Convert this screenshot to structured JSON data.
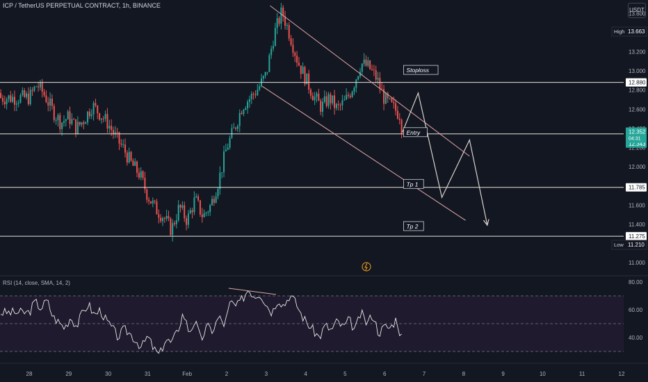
{
  "title": "ICP / TetherUS PERPETUAL CONTRACT, 1h, BINANCE",
  "currency": "USDT",
  "rsi_title": "RSI (14, close, SMA, 14, 2)",
  "colors": {
    "bg": "#131722",
    "up": "#26a69a",
    "down": "#ef5350",
    "level": "#e8e4d8",
    "channel": "#e0a8a8",
    "arrow": "#d9d4cc",
    "rsi": "#e8e8e8",
    "rsi_band": "#1f1a2e",
    "high_box": "#131722",
    "badge_green": "#26a69a"
  },
  "chart_data": [
    {
      "type": "candlestick",
      "x_tick_labels": [
        "28",
        "29",
        "30",
        "31",
        "Feb",
        "2",
        "3",
        "4",
        "5",
        "6",
        "7",
        "8",
        "9",
        "10",
        "11",
        "12"
      ],
      "y_ticks": [
        "13.600",
        "13.400",
        "13.200",
        "13.000",
        "12.800",
        "12.600",
        "12.400",
        "12.200",
        "12.000",
        "11.800",
        "11.600",
        "11.400",
        "11.200",
        "11.000"
      ],
      "ylim": [
        10.87,
        13.74
      ],
      "xlim": [
        -0.75,
        15.1
      ],
      "price_path": [
        [
          0.0,
          12.72
        ],
        [
          0.2,
          12.86
        ],
        [
          0.4,
          12.74
        ],
        [
          0.6,
          12.58
        ],
        [
          0.8,
          12.46
        ],
        [
          1.0,
          12.52
        ],
        [
          1.2,
          12.4
        ],
        [
          1.4,
          12.5
        ],
        [
          1.6,
          12.64
        ],
        [
          1.8,
          12.55
        ],
        [
          2.0,
          12.45
        ],
        [
          2.2,
          12.3
        ],
        [
          2.4,
          12.18
        ],
        [
          2.6,
          12.02
        ],
        [
          2.8,
          11.92
        ],
        [
          3.0,
          11.7
        ],
        [
          3.2,
          11.56
        ],
        [
          3.4,
          11.48
        ],
        [
          3.6,
          11.34
        ],
        [
          3.8,
          11.58
        ],
        [
          4.0,
          11.44
        ],
        [
          4.2,
          11.66
        ],
        [
          4.4,
          11.48
        ],
        [
          4.6,
          11.6
        ],
        [
          4.8,
          11.86
        ],
        [
          5.0,
          12.2
        ],
        [
          5.2,
          12.4
        ],
        [
          5.4,
          12.64
        ],
        [
          5.6,
          12.72
        ],
        [
          5.8,
          12.82
        ],
        [
          6.0,
          12.96
        ],
        [
          6.2,
          13.38
        ],
        [
          6.4,
          13.62
        ],
        [
          6.6,
          13.38
        ],
        [
          6.8,
          13.1
        ],
        [
          7.0,
          12.92
        ],
        [
          7.2,
          12.74
        ],
        [
          7.4,
          12.62
        ],
        [
          7.6,
          12.72
        ],
        [
          7.8,
          12.6
        ],
        [
          8.0,
          12.68
        ],
        [
          8.2,
          12.84
        ],
        [
          8.4,
          13.08
        ],
        [
          8.6,
          13.04
        ],
        [
          8.8,
          12.92
        ],
        [
          9.0,
          12.7
        ],
        [
          9.2,
          12.62
        ],
        [
          9.4,
          12.54
        ],
        [
          9.45,
          12.34
        ]
      ],
      "levels": [
        {
          "price": 12.88,
          "label": "12.880"
        },
        {
          "price": 12.343,
          "label": "12.343"
        },
        {
          "price": 11.785,
          "label": "11.785"
        },
        {
          "price": 11.275,
          "label": "11.275"
        }
      ],
      "current": {
        "price": "12.352",
        "countdown": "04:31"
      },
      "high": {
        "label": "High",
        "value": "13.663"
      },
      "low": {
        "label": "Low",
        "value": "11.210"
      },
      "annotations": [
        {
          "text": "Stoploss",
          "x": 9.55,
          "price": 13.0
        },
        {
          "text": "Entry",
          "x": 9.55,
          "price": 12.35
        },
        {
          "text": "Tp 1",
          "x": 9.55,
          "price": 11.81
        },
        {
          "text": "Tp 2",
          "x": 9.55,
          "price": 11.37
        }
      ],
      "channel_upper": [
        [
          6.1,
          13.68
        ],
        [
          11.15,
          12.11
        ]
      ],
      "channel_lower": [
        [
          5.9,
          12.84
        ],
        [
          11.05,
          11.44
        ]
      ],
      "projection": [
        [
          9.45,
          12.36
        ],
        [
          9.85,
          12.77
        ],
        [
          10.45,
          11.68
        ],
        [
          11.15,
          12.28
        ],
        [
          11.6,
          11.39
        ]
      ]
    },
    {
      "type": "line",
      "name": "RSI",
      "y_ticks": [
        "80.00",
        "60.00",
        "40.00"
      ],
      "ylim": [
        22,
        84
      ],
      "bands": [
        70,
        50,
        30
      ],
      "values": [
        [
          0.0,
          58
        ],
        [
          0.15,
          66
        ],
        [
          0.3,
          61
        ],
        [
          0.45,
          67
        ],
        [
          0.6,
          55
        ],
        [
          0.75,
          51
        ],
        [
          0.9,
          47
        ],
        [
          1.05,
          55
        ],
        [
          1.2,
          48
        ],
        [
          1.35,
          58
        ],
        [
          1.5,
          64
        ],
        [
          1.65,
          56
        ],
        [
          1.8,
          60
        ],
        [
          1.95,
          52
        ],
        [
          2.1,
          47
        ],
        [
          2.25,
          40
        ],
        [
          2.4,
          46
        ],
        [
          2.55,
          43
        ],
        [
          2.7,
          38
        ],
        [
          2.85,
          33
        ],
        [
          3.0,
          41
        ],
        [
          3.15,
          32
        ],
        [
          3.3,
          27
        ],
        [
          3.45,
          39
        ],
        [
          3.6,
          36
        ],
        [
          3.75,
          44
        ],
        [
          3.9,
          58
        ],
        [
          4.05,
          44
        ],
        [
          4.2,
          52
        ],
        [
          4.35,
          38
        ],
        [
          4.5,
          48
        ],
        [
          4.65,
          45
        ],
        [
          4.8,
          55
        ],
        [
          4.95,
          49
        ],
        [
          5.1,
          66
        ],
        [
          5.25,
          62
        ],
        [
          5.4,
          68
        ],
        [
          5.55,
          75
        ],
        [
          5.7,
          70
        ],
        [
          5.85,
          72
        ],
        [
          6.0,
          64
        ],
        [
          6.15,
          58
        ],
        [
          6.3,
          68
        ],
        [
          6.45,
          63
        ],
        [
          6.6,
          71
        ],
        [
          6.75,
          65
        ],
        [
          6.9,
          56
        ],
        [
          7.05,
          50
        ],
        [
          7.2,
          45
        ],
        [
          7.35,
          40
        ],
        [
          7.5,
          49
        ],
        [
          7.65,
          45
        ],
        [
          7.8,
          52
        ],
        [
          7.95,
          47
        ],
        [
          8.1,
          53
        ],
        [
          8.25,
          45
        ],
        [
          8.4,
          58
        ],
        [
          8.55,
          50
        ],
        [
          8.7,
          57
        ],
        [
          8.85,
          43
        ],
        [
          9.0,
          48
        ],
        [
          9.15,
          47
        ],
        [
          9.3,
          54
        ],
        [
          9.4,
          42
        ],
        [
          9.45,
          40
        ]
      ],
      "divergence_line": [
        [
          5.05,
          75.5
        ],
        [
          6.25,
          71
        ]
      ]
    }
  ]
}
